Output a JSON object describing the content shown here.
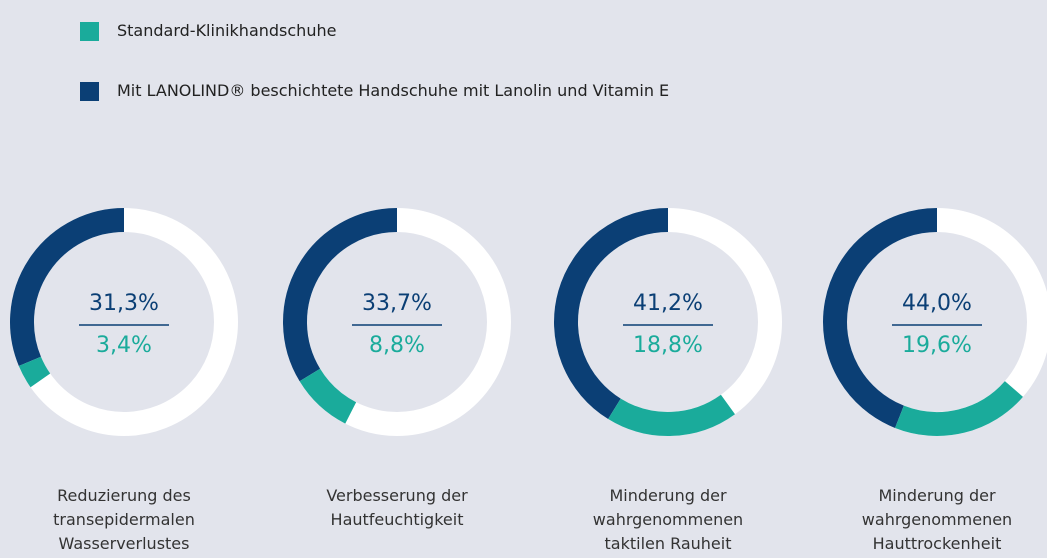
{
  "chart_data": {
    "type": "donut",
    "categories": [
      "Reduzierung des transepidermalen Wasserverlustes",
      "Verbesserung der Hautfeuchtigkeit",
      "Minderung der wahrgenommenen taktilen Rauheit",
      "Minderung der wahrgenommenen Hauttrockenheit"
    ],
    "series": [
      {
        "name": "Standard-Klinikhandschuhe",
        "color": "#1aab9b",
        "values": [
          3.4,
          8.8,
          18.8,
          19.6
        ],
        "value_labels": [
          "3,4%",
          "8,8%",
          "18,8%",
          "19,6%"
        ]
      },
      {
        "name": "Mit LANOLIND® beschichtete Handschuhe mit Lanolin und Vitamin E",
        "color": "#0b3f75",
        "values": [
          31.3,
          33.7,
          41.2,
          44.0
        ],
        "value_labels": [
          "31,3%",
          "33,7%",
          "41,2%",
          "44,0%"
        ]
      }
    ]
  }
}
